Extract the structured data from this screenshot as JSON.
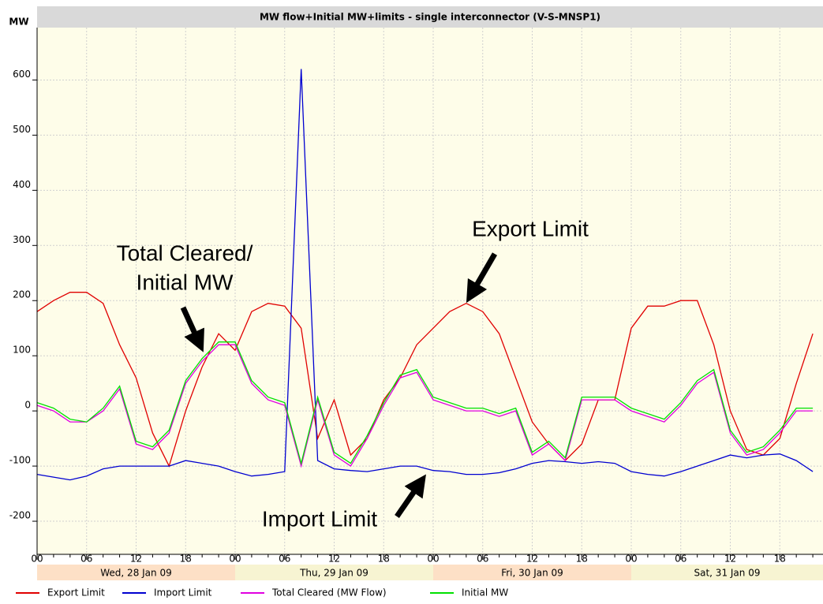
{
  "chart_data": {
    "type": "line",
    "title": "MW flow+Initial MW+limits - single interconnector (V-S-MNSP1)",
    "y_label": "MW",
    "categories": [
      "00",
      null,
      null,
      "06",
      null,
      null,
      "12",
      null,
      null,
      "18",
      null,
      null,
      "00",
      null,
      null,
      "06",
      null,
      null,
      "12",
      null,
      null,
      "18",
      null,
      null,
      "00",
      null,
      null,
      "06",
      null,
      null,
      "12",
      null,
      null,
      "18",
      null,
      null,
      "00",
      null,
      null,
      "06",
      null,
      null,
      "12",
      null,
      null,
      "18",
      null,
      null
    ],
    "day_labels": [
      "Wed, 28 Jan 09",
      "Thu, 29 Jan 09",
      "Fri, 30 Jan 09",
      "Sat, 31 Jan 09"
    ],
    "day_band_colors": [
      "#fde0c6",
      "#f7f4d2"
    ],
    "ylim": [
      -260,
      695
    ],
    "yticks": [
      -200,
      -100,
      0,
      100,
      200,
      300,
      400,
      500,
      600
    ],
    "grid": true,
    "series": [
      {
        "name": "Export Limit",
        "color": "#e00000",
        "values": [
          180,
          200,
          215,
          215,
          195,
          120,
          60,
          -40,
          -100,
          0,
          80,
          140,
          110,
          180,
          195,
          190,
          150,
          -50,
          20,
          -80,
          -50,
          20,
          60,
          120,
          150,
          180,
          195,
          180,
          140,
          60,
          -20,
          -60,
          -90,
          -60,
          20,
          20,
          150,
          190,
          190,
          200,
          200,
          120,
          0,
          -70,
          -80,
          -50,
          50,
          140
        ]
      },
      {
        "name": "Import Limit",
        "color": "#0000d0",
        "values": [
          -115,
          -120,
          -125,
          -118,
          -105,
          -100,
          -100,
          -100,
          -100,
          -90,
          -95,
          -100,
          -110,
          -118,
          -115,
          -110,
          620,
          -90,
          -105,
          -108,
          -110,
          -105,
          -100,
          -100,
          -108,
          -110,
          -115,
          -115,
          -112,
          -105,
          -95,
          -90,
          -92,
          -95,
          -92,
          -95,
          -110,
          -115,
          -118,
          -110,
          -100,
          -90,
          -80,
          -85,
          -80,
          -78,
          -90,
          -110
        ]
      },
      {
        "name": "Total Cleared (MW Flow)",
        "color": "#e000e0",
        "values": [
          10,
          0,
          -20,
          -20,
          0,
          40,
          -60,
          -70,
          -40,
          50,
          90,
          120,
          120,
          50,
          20,
          10,
          -100,
          20,
          -80,
          -100,
          -50,
          10,
          60,
          70,
          20,
          10,
          0,
          0,
          -10,
          0,
          -80,
          -60,
          -90,
          20,
          20,
          20,
          0,
          -10,
          -20,
          10,
          50,
          70,
          -40,
          -80,
          -70,
          -40,
          0,
          0
        ]
      },
      {
        "name": "Initial MW",
        "color": "#00e000",
        "values": [
          15,
          5,
          -15,
          -20,
          5,
          45,
          -55,
          -65,
          -35,
          55,
          95,
          125,
          125,
          55,
          25,
          15,
          -95,
          25,
          -75,
          -95,
          -45,
          15,
          65,
          75,
          25,
          15,
          5,
          5,
          -5,
          5,
          -75,
          -55,
          -85,
          25,
          25,
          25,
          5,
          -5,
          -15,
          15,
          55,
          75,
          -35,
          -75,
          -65,
          -35,
          5,
          5
        ]
      }
    ],
    "annotations": [
      "Total Cleared/",
      "Initial MW",
      "Export Limit",
      "Import Limit"
    ]
  }
}
